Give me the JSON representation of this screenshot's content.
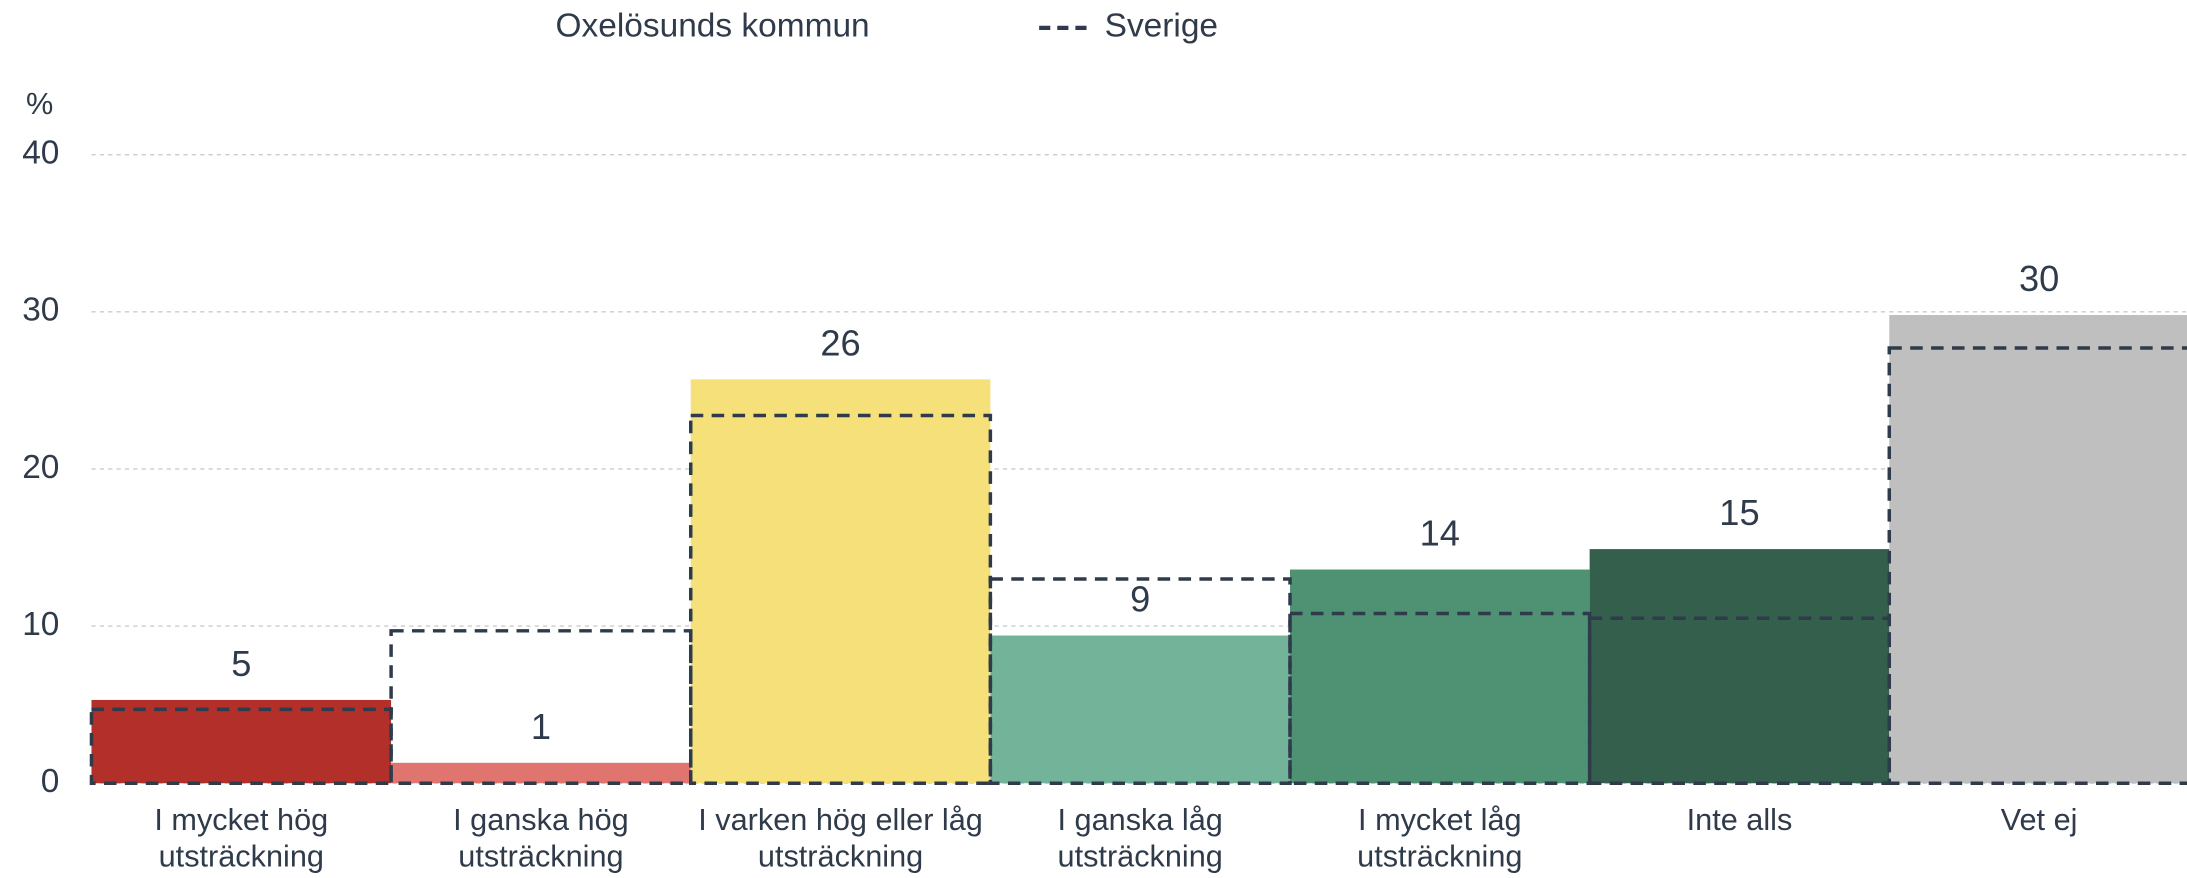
{
  "chart_data": {
    "type": "bar",
    "y_label": "%",
    "categories": [
      [
        "I mycket hög",
        "utsträckning"
      ],
      [
        "I ganska hög",
        "utsträckning"
      ],
      [
        "I varken hög eller låg",
        "utsträckning"
      ],
      [
        "I ganska låg",
        "utsträckning"
      ],
      [
        "I mycket låg",
        "utsträckning"
      ],
      [
        "Inte alls"
      ],
      [
        "Vet ej"
      ]
    ],
    "series": [
      {
        "name": "Oxelösunds kommun",
        "colors": [
          "#b22f2a",
          "#e07570",
          "#f5e07a",
          "#72b399",
          "#4e9173",
          "#335f4c",
          "#bfbfbf"
        ],
        "values": [
          5.3,
          1.3,
          25.7,
          9.4,
          13.6,
          14.9,
          29.8
        ],
        "value_labels": [
          "5",
          "1",
          "26",
          "9",
          "14",
          "15",
          "30"
        ]
      },
      {
        "name": "Sverige",
        "color": "#2f3b4a",
        "style": "dashed",
        "values": [
          4.7,
          9.7,
          23.4,
          13.0,
          10.8,
          10.5,
          27.7
        ]
      }
    ],
    "ylim": [
      0,
      40
    ],
    "yticks": [
      0,
      10,
      20,
      30,
      40
    ],
    "grid": true
  }
}
